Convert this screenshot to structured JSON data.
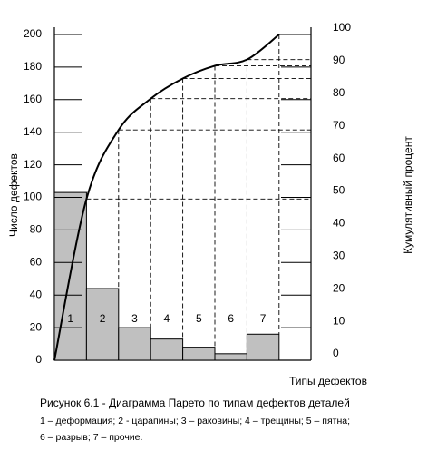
{
  "chart_data": {
    "type": "pareto",
    "y_label": "Число дефектов",
    "y2_label": "Кумулятивный процент",
    "x_label": "Типы дефектов",
    "caption": "Рисунок 6.1 - Диаграмма Парето по типам дефектов деталей",
    "legend_lines": [
      "1 – деформация; 2 -  царапины; 3 – раковины; 4 – трещины; 5 – пятна;",
      "6 – разрыв; 7 – прочие."
    ],
    "categories": [
      "1",
      "2",
      "3",
      "4",
      "5",
      "6",
      "7"
    ],
    "series": [
      {
        "name": "Число дефектов",
        "color": "#c0c0c0",
        "values": [
          103,
          44,
          20,
          13,
          8,
          4,
          16
        ]
      },
      {
        "name": "Кумулятивный процент",
        "color": "#000000",
        "axis": "y2",
        "values": [
          49.5,
          70.7,
          80.3,
          86.5,
          90.4,
          92.3,
          100
        ]
      }
    ],
    "ylim": [
      0,
      200
    ],
    "yticks": [
      0,
      20,
      40,
      60,
      80,
      100,
      120,
      140,
      160,
      180,
      200
    ],
    "y2lim": [
      0,
      100
    ],
    "y2ticks": [
      0,
      10,
      20,
      30,
      40,
      50,
      60,
      70,
      80,
      90,
      100
    ]
  }
}
